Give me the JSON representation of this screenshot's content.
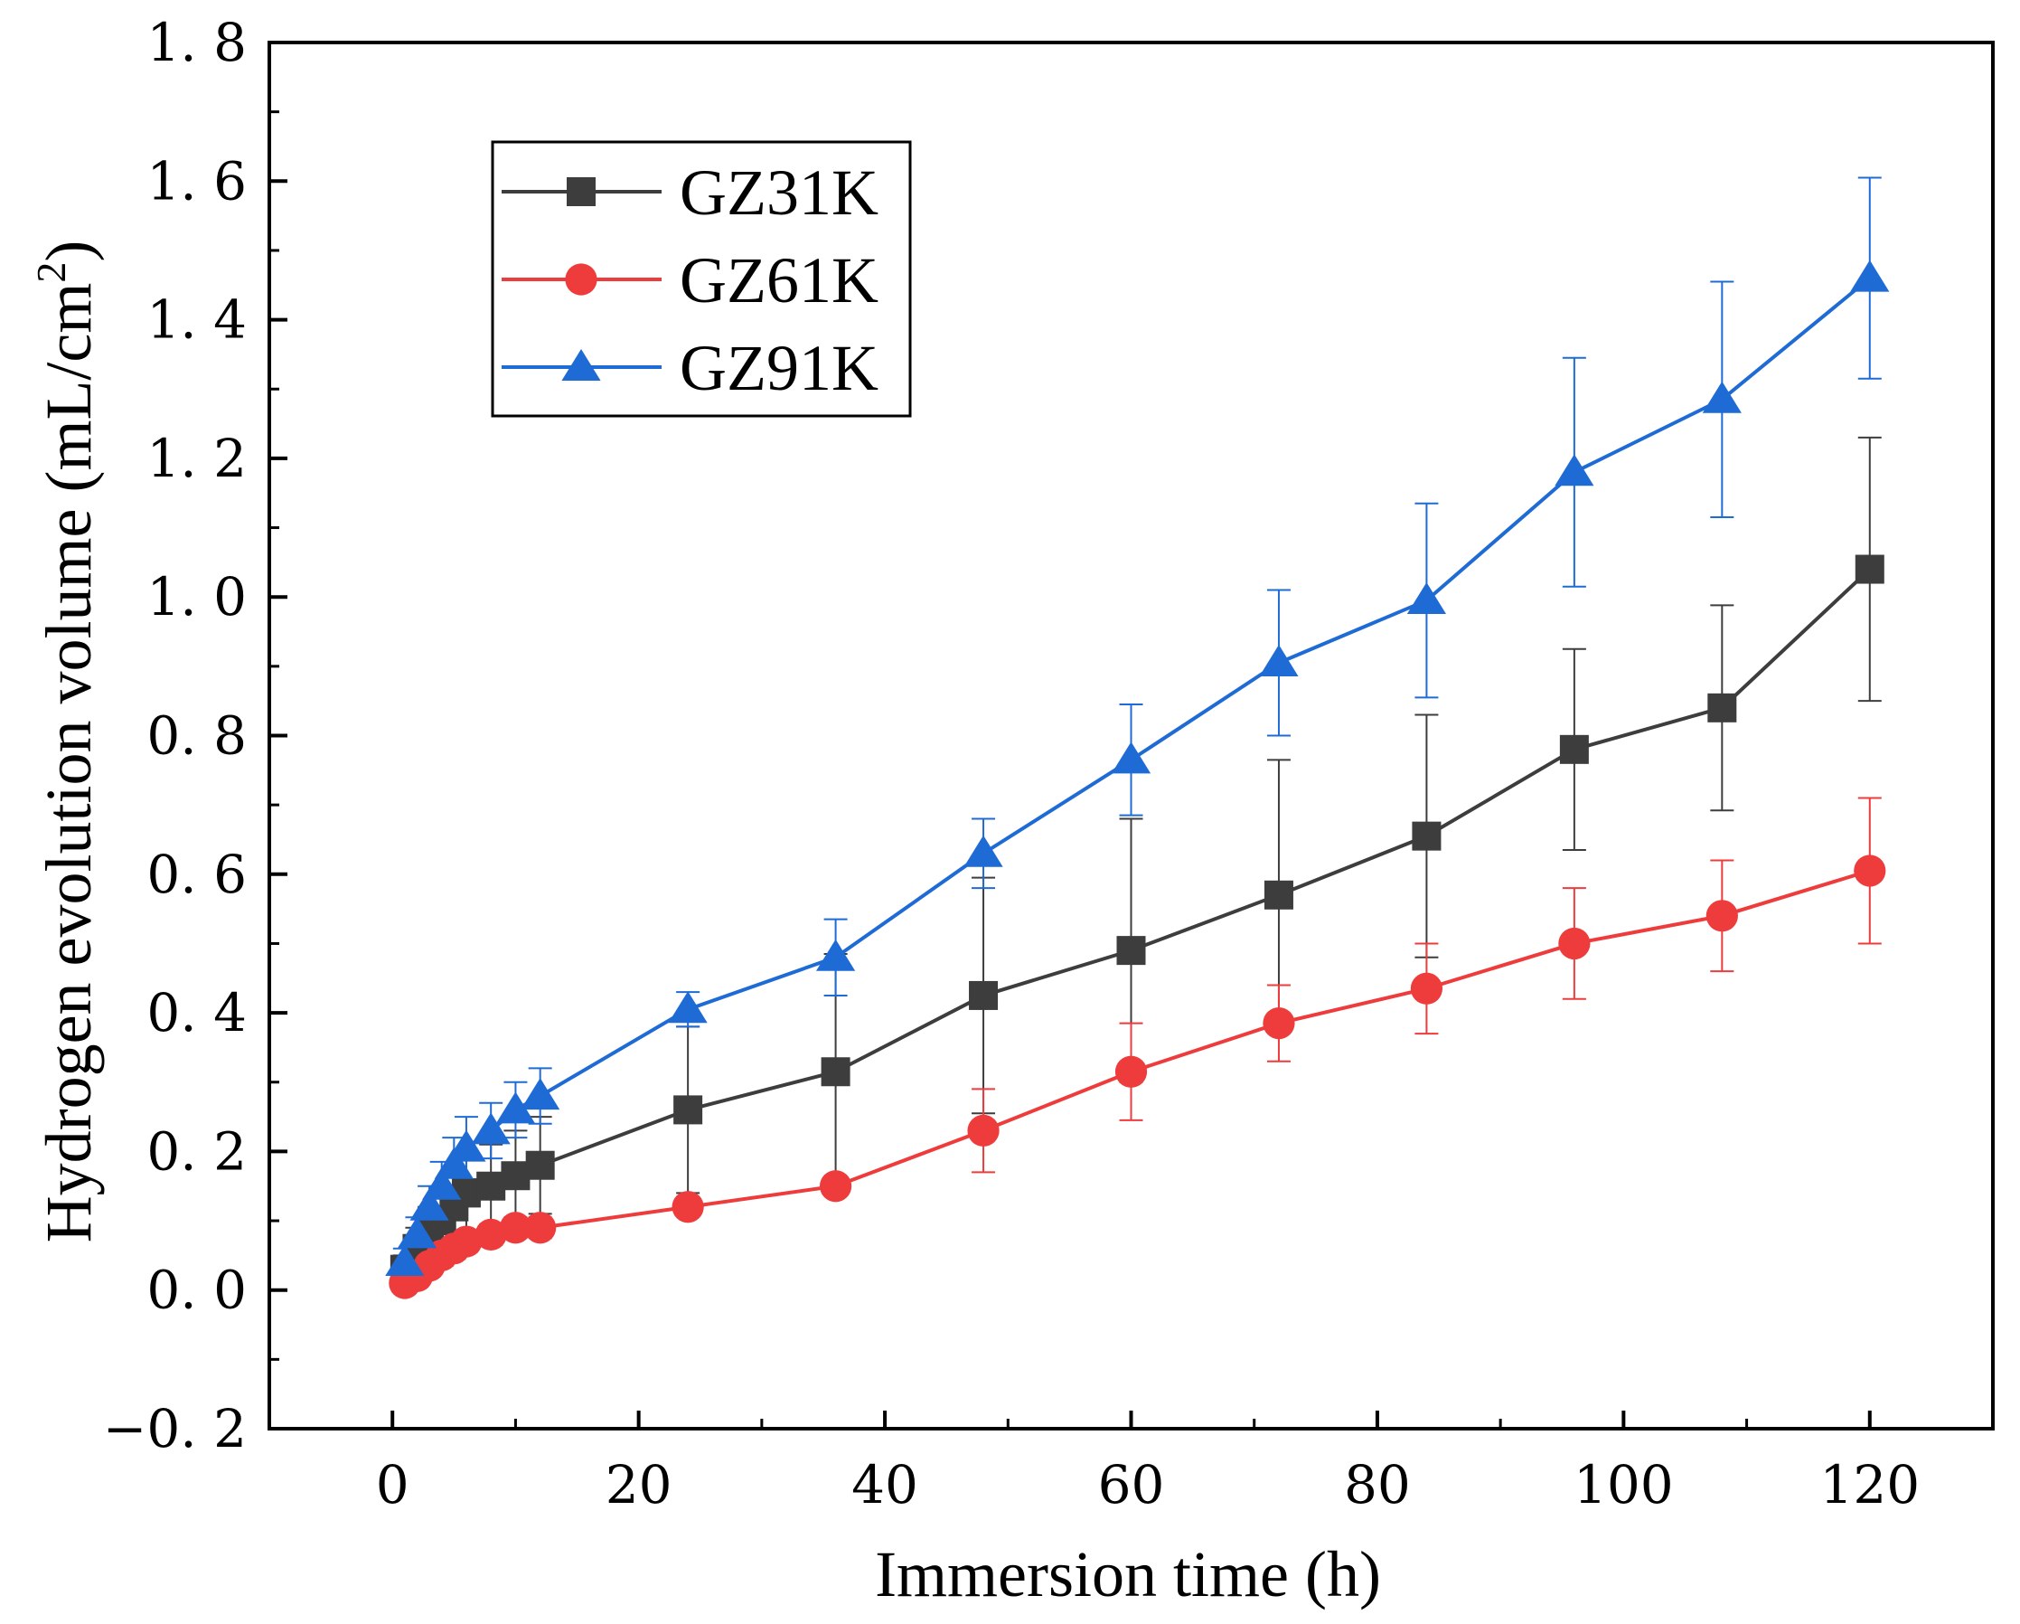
{
  "chart_data": {
    "type": "line",
    "xlabel": "Immersion time (h)",
    "ylabel": "Hydrogen evolution volume (mL/cm",
    "ylabel_sup": "2",
    "ylabel_end": ")",
    "xlim": [
      -10,
      130
    ],
    "ylim": [
      -0.2,
      1.8
    ],
    "xticks": [
      0,
      20,
      40,
      60,
      80,
      100,
      120
    ],
    "xtick_labels": [
      "0",
      "20",
      "40",
      "60",
      "80",
      "100",
      "120"
    ],
    "yticks": [
      -0.2,
      0,
      0.2,
      0.4,
      0.6,
      0.8,
      1.0,
      1.2,
      1.4,
      1.6,
      1.8
    ],
    "ytick_labels": [
      "−0. 2",
      "0. 0",
      "0. 2",
      "0. 4",
      "0. 6",
      "0. 8",
      "1. 0",
      "1. 2",
      "1. 4",
      "1. 6",
      "1. 8"
    ],
    "grid": false,
    "legend_position": "top-left",
    "x": [
      1,
      2,
      3,
      4,
      5,
      6,
      8,
      10,
      12,
      24,
      36,
      48,
      60,
      72,
      84,
      96,
      108,
      120
    ],
    "series": [
      {
        "name": "GZ31K",
        "color": "#3d3d3d",
        "marker": "square",
        "values": [
          0.03,
          0.06,
          0.08,
          0.1,
          0.12,
          0.14,
          0.15,
          0.165,
          0.18,
          0.26,
          0.315,
          0.425,
          0.49,
          0.57,
          0.655,
          0.78,
          0.84,
          1.04
        ],
        "errors": [
          0.02,
          0.03,
          0.04,
          0.05,
          0.05,
          0.06,
          0.06,
          0.065,
          0.07,
          0.12,
          0.17,
          0.17,
          0.19,
          0.195,
          0.175,
          0.145,
          0.148,
          0.19
        ]
      },
      {
        "name": "GZ61K",
        "color": "#ee3b3b",
        "marker": "circle",
        "values": [
          0.01,
          0.02,
          0.035,
          0.05,
          0.06,
          0.07,
          0.08,
          0.09,
          0.09,
          0.12,
          0.15,
          0.23,
          0.315,
          0.385,
          0.435,
          0.5,
          0.54,
          0.605
        ],
        "errors": [
          0.005,
          0.01,
          0.012,
          0.015,
          0.015,
          0.015,
          0.015,
          0.015,
          0.015,
          0.01,
          0.01,
          0.06,
          0.07,
          0.055,
          0.065,
          0.08,
          0.08,
          0.105
        ]
      },
      {
        "name": "GZ91K",
        "color": "#1f6bd6",
        "marker": "triangle",
        "values": [
          0.04,
          0.08,
          0.12,
          0.15,
          0.18,
          0.205,
          0.23,
          0.26,
          0.28,
          0.405,
          0.48,
          0.63,
          0.765,
          0.905,
          0.995,
          1.18,
          1.285,
          1.46
        ],
        "errors": [
          0.02,
          0.025,
          0.03,
          0.035,
          0.04,
          0.045,
          0.04,
          0.04,
          0.04,
          0.025,
          0.055,
          0.05,
          0.08,
          0.105,
          0.14,
          0.165,
          0.17,
          0.145
        ]
      }
    ]
  }
}
